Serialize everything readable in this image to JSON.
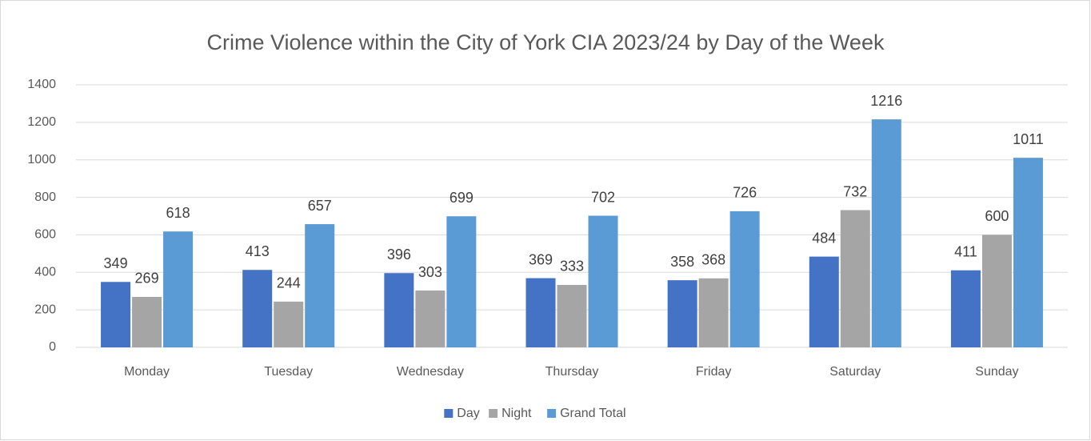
{
  "chart_data": {
    "type": "bar",
    "title": "Crime Violence within the City of York CIA 2023/24 by Day of the Week",
    "categories": [
      "Monday",
      "Tuesday",
      "Wednesday",
      "Thursday",
      "Friday",
      "Saturday",
      "Sunday"
    ],
    "series": [
      {
        "name": "Day",
        "color": "#4472c4",
        "values": [
          349,
          413,
          396,
          369,
          358,
          484,
          411
        ]
      },
      {
        "name": "Night",
        "color": "#a5a5a5",
        "values": [
          269,
          244,
          303,
          333,
          368,
          732,
          600
        ]
      },
      {
        "name": "Grand Total",
        "color": "#5b9bd5",
        "values": [
          618,
          657,
          699,
          702,
          726,
          1216,
          1011
        ]
      }
    ],
    "ylim": [
      0,
      1400
    ],
    "yticks": [
      0,
      200,
      400,
      600,
      800,
      1000,
      1200,
      1400
    ],
    "grid": true,
    "legend": "bottom"
  }
}
